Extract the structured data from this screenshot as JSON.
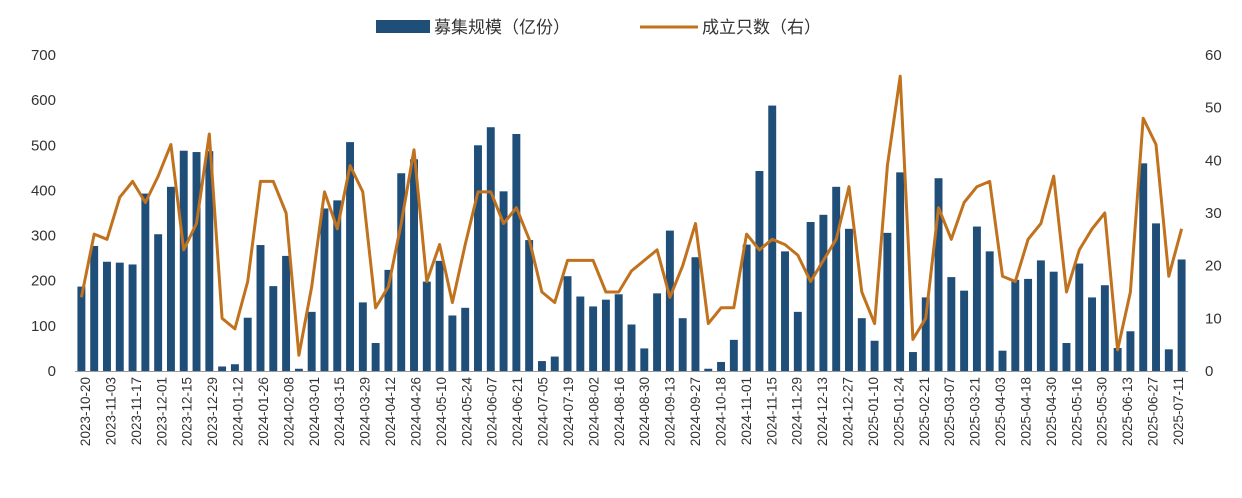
{
  "chart_data": {
    "type": "bar",
    "legend": {
      "position": "top-center"
    },
    "grid": false,
    "colors": {
      "bar": "#1f4e79",
      "line": "#c0721e"
    },
    "y_left": {
      "range": [
        0,
        700
      ],
      "ticks": [
        "0",
        "100",
        "200",
        "300",
        "400",
        "500",
        "600",
        "700"
      ]
    },
    "y_right": {
      "range": [
        0,
        60
      ],
      "ticks": [
        "0",
        "10",
        "20",
        "30",
        "40",
        "50",
        "60"
      ]
    },
    "x_tick_labels": [
      "2023-10-20",
      "2023-11-03",
      "2023-11-17",
      "2023-12-01",
      "2023-12-15",
      "2023-12-29",
      "2024-01-12",
      "2024-01-26",
      "2024-02-08",
      "2024-03-01",
      "2024-03-15",
      "2024-03-29",
      "2024-04-12",
      "2024-04-26",
      "2024-05-10",
      "2024-05-24",
      "2024-06-07",
      "2024-06-21",
      "2024-07-05",
      "2024-07-19",
      "2024-08-02",
      "2024-08-16",
      "2024-08-30",
      "2024-09-13",
      "2024-09-27",
      "2024-10-18",
      "2024-11-01",
      "2024-11-15",
      "2024-11-29",
      "2024-12-13",
      "2024-12-27",
      "2025-01-10",
      "2025-01-24",
      "2025-02-21",
      "2025-03-07",
      "2025-03-21",
      "2025-04-03",
      "2025-04-18",
      "2025-04-30",
      "2025-05-16",
      "2025-05-30",
      "2025-06-13",
      "2025-06-27",
      "2025-07-11"
    ],
    "series": [
      {
        "name": "募集规模（亿份）",
        "type": "bar",
        "axis": "left",
        "values": [
          187,
          277,
          242,
          240,
          236,
          393,
          303,
          408,
          488,
          485,
          487,
          10,
          15,
          118,
          279,
          188,
          255,
          5,
          131,
          360,
          378,
          507,
          152,
          62,
          224,
          438,
          469,
          198,
          244,
          123,
          140,
          500,
          540,
          398,
          525,
          290,
          22,
          32,
          210,
          165,
          143,
          158,
          170,
          103,
          50,
          172,
          311,
          117,
          252,
          5,
          20,
          69,
          280,
          443,
          588,
          265,
          131,
          330,
          346,
          408,
          315,
          117,
          67,
          306,
          440,
          42,
          163,
          427,
          208,
          178,
          320,
          265,
          45,
          202,
          204,
          245,
          220,
          62,
          238,
          163,
          190,
          51,
          88,
          460,
          327,
          48,
          247
        ]
      },
      {
        "name": "成立只数（右）",
        "type": "line",
        "axis": "right",
        "values": [
          14,
          26,
          25,
          33,
          36,
          32,
          37,
          43,
          23,
          28,
          45,
          10,
          8,
          17,
          36,
          36,
          30,
          3,
          16,
          34,
          27,
          39,
          34,
          12,
          16,
          28,
          42,
          17,
          24,
          13,
          24,
          34,
          34,
          28,
          31,
          25,
          15,
          13,
          21,
          21,
          21,
          15,
          15,
          19,
          21,
          23,
          14,
          20,
          28,
          9,
          12,
          12,
          26,
          23,
          25,
          24,
          22,
          17,
          21,
          25,
          35,
          15,
          9,
          39,
          56,
          6,
          10,
          31,
          25,
          32,
          35,
          36,
          18,
          17,
          25,
          28,
          37,
          15,
          23,
          27,
          30,
          4,
          15,
          48,
          43,
          18,
          27
        ]
      }
    ]
  }
}
